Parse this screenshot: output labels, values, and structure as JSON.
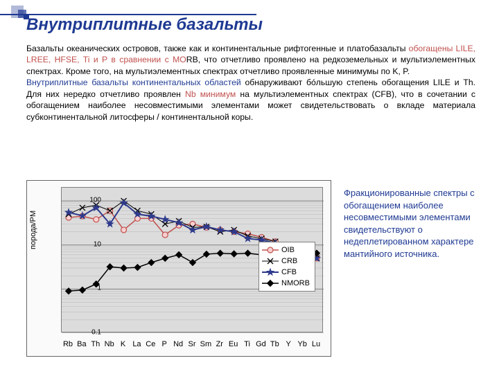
{
  "title": "Внутриплитные базальты",
  "para1a": "Базальты океанических островов, также как и континентальные рифтогенные и платобазальты ",
  "para1b": "обогащены LILE, LREE, HFSE, Ti и P в сравнении с MO",
  "para1c": "RB, что отчетливо проявлено на редкоземельных и мультиэлементных спектрах. Кроме того, на мультиэлементных спектрах отчетливо проявленные минимумы по K, P.",
  "para2a": "Внутриплитные базальты континентальных областей",
  "para2b": " обнаруживают бо́льшую степень обогащения LILE и Th. Для них нередко отчетливо проявлен ",
  "para2c": "Nb минимум",
  "para2d": " на мультиэлементных спектрах (CFB), что в сочетании с обогащением наиболее несовместимыми элементами может свидетельствовать о вкладе материала субконтинентальной литосферы / континентальной коры.",
  "sideText": "Фракционированные спектры с обогащением наиболее несовместимыми элементами свидетельствуют о недеплетированном характере мантийного источника.",
  "chart": {
    "type": "line-log",
    "ylabel": "порода/PM",
    "plot_bg": "#dcdcdc",
    "grid_color": "#7f7f7f",
    "ylim_log": [
      -1,
      2.3
    ],
    "yticks": [
      0.1,
      1,
      10,
      100
    ],
    "categories": [
      "Rb",
      "Ba",
      "Th",
      "Nb",
      "K",
      "La",
      "Ce",
      "P",
      "Nd",
      "Sr",
      "Sm",
      "Zr",
      "Eu",
      "Ti",
      "Gd",
      "Tb",
      "Y",
      "Yb",
      "Lu"
    ],
    "series": [
      {
        "name": "OIB",
        "color": "#c0504d",
        "marker": "circle",
        "fill": "#f7cfd0",
        "lw": 1.5,
        "values": [
          42,
          45,
          38,
          60,
          22,
          40,
          40,
          17,
          28,
          30,
          25,
          22,
          20,
          18,
          15,
          12,
          9,
          6,
          5
        ]
      },
      {
        "name": "CRB",
        "color": "#000000",
        "marker": "x",
        "fill": "none",
        "lw": 1,
        "values": [
          50,
          70,
          80,
          60,
          100,
          60,
          50,
          30,
          35,
          25,
          26,
          20,
          22,
          16,
          14,
          12,
          8,
          6,
          5
        ]
      },
      {
        "name": "CFB",
        "color": "#2e3a8c",
        "marker": "star",
        "fill": "#2e3a8c",
        "lw": 2,
        "values": [
          55,
          46,
          70,
          30,
          90,
          50,
          45,
          38,
          32,
          22,
          26,
          22,
          20,
          14,
          13,
          11,
          8,
          5.5,
          5
        ]
      },
      {
        "name": "NMORB",
        "color": "#000000",
        "marker": "diamond",
        "fill": "#000000",
        "lw": 1.5,
        "values": [
          0.9,
          0.95,
          1.3,
          3.2,
          3,
          3.1,
          4,
          5,
          6,
          4,
          6.2,
          6.5,
          6.3,
          6.5,
          6,
          5.5,
          6.2,
          6.5,
          6.5
        ]
      }
    ],
    "legend_pos": "right-middle",
    "fontsize_tick": 11
  },
  "decor": {
    "line_color": "#1f3a93"
  }
}
